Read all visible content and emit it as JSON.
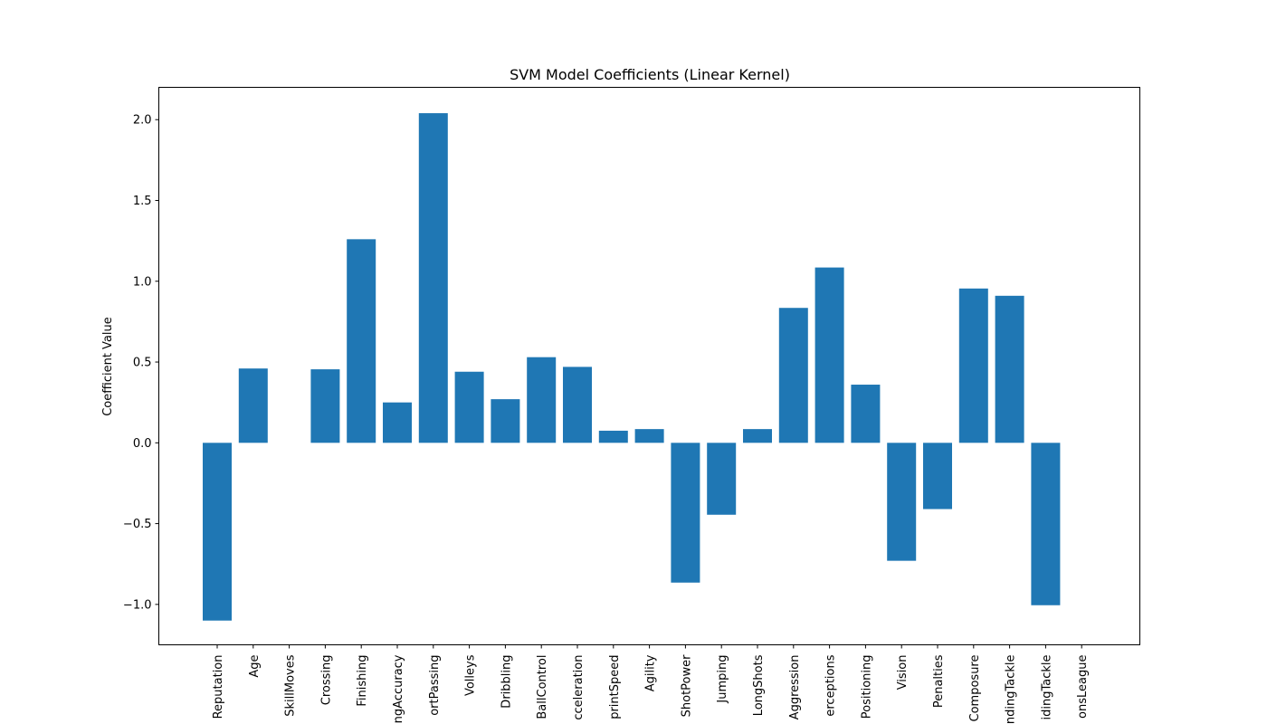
{
  "chart_data": {
    "type": "bar",
    "title": "SVM Model Coefficients (Linear Kernel)",
    "xlabel": "",
    "ylabel": "Coefficient Value",
    "categories": [
      "Reputation",
      "Age",
      "SkillMoves",
      "Crossing",
      "Finishing",
      "ngAccuracy",
      "ortPassing",
      "Volleys",
      "Dribbling",
      "BallControl",
      "cceleration",
      "printSpeed",
      "Agility",
      "ShotPower",
      "Jumping",
      "LongShots",
      "Aggression",
      "erceptions",
      "Positioning",
      "Vision",
      "Penalties",
      "Composure",
      "ndingTackle",
      "idingTackle",
      "onsLeague"
    ],
    "values": [
      -1.1,
      0.46,
      0.0,
      0.455,
      1.26,
      0.25,
      2.04,
      0.44,
      0.27,
      0.53,
      0.47,
      0.075,
      0.085,
      -0.865,
      -0.445,
      0.085,
      0.835,
      1.085,
      0.36,
      -0.73,
      -0.41,
      0.955,
      0.91,
      -1.005,
      0.0
    ],
    "ylim": [
      -1.25,
      2.2
    ],
    "yticks": [
      -1.0,
      -0.5,
      0.0,
      0.5,
      1.0,
      1.5,
      2.0
    ],
    "ytick_labels": [
      "−1.0",
      "−0.5",
      "0.0",
      "0.5",
      "1.0",
      "1.5",
      "2.0"
    ],
    "bar_color": "#1f77b4",
    "grid": false,
    "legend": "none"
  }
}
